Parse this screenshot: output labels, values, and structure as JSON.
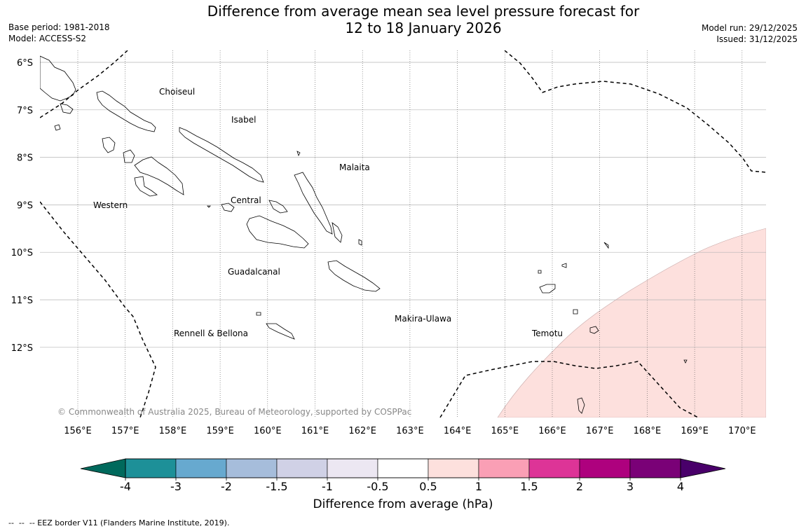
{
  "title": {
    "line1": "Difference from average mean sea level pressure forecast for",
    "line2": "12 to 18 January 2026"
  },
  "meta_left": {
    "base_period": "Base period: 1981-2018",
    "model": "Model: ACCESS-S2"
  },
  "meta_right": {
    "model_run": "Model run: 29/12/2025",
    "issued": "Issued: 31/12/2025"
  },
  "map": {
    "lat_labels": [
      "6°S",
      "7°S",
      "8°S",
      "9°S",
      "10°S",
      "11°S",
      "12°S"
    ],
    "lon_labels": [
      "156°E",
      "157°E",
      "158°E",
      "159°E",
      "160°E",
      "161°E",
      "162°E",
      "163°E",
      "164°E",
      "165°E",
      "166°E",
      "167°E",
      "168°E",
      "169°E",
      "170°E"
    ],
    "province_labels": [
      "Choiseul",
      "Isabel",
      "Malaita",
      "Western",
      "Central",
      "Guadalcanal",
      "Makira-Ulawa",
      "Temotu",
      "Rennell & Bellona"
    ],
    "copyright": "© Commonwealth of Australia 2025, Bureau of Meteorology, supported by COSPPac",
    "anomaly_fill_color": "#fde0dd",
    "anomaly_category": "0.5 to 1"
  },
  "colorbar": {
    "label": "Difference from average (hPa)",
    "ticks": [
      "-4",
      "-3",
      "-2",
      "-1.5",
      "-1",
      "-0.5",
      "0.5",
      "1",
      "1.5",
      "2",
      "3",
      "4"
    ],
    "colors": [
      "#1d9098",
      "#67a9cf",
      "#a6bddb",
      "#d0d1e6",
      "#ece7f2",
      "#ffffff",
      "#fde0dd",
      "#fa9fb5",
      "#dd3497",
      "#ae017e",
      "#7a0177"
    ],
    "low_extend_color": "#00695c",
    "high_extend_color": "#49006a"
  },
  "footnote": "--  --  -- EEZ border V11 (Flanders Marine Institute, 2019)."
}
